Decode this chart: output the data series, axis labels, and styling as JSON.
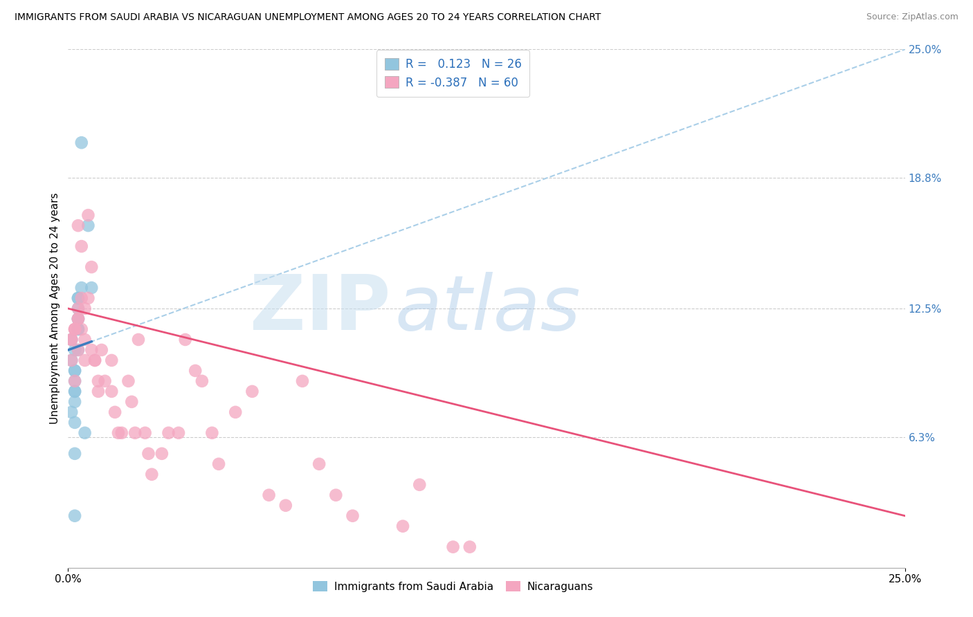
{
  "title": "IMMIGRANTS FROM SAUDI ARABIA VS NICARAGUAN UNEMPLOYMENT AMONG AGES 20 TO 24 YEARS CORRELATION CHART",
  "source": "Source: ZipAtlas.com",
  "ylabel": "Unemployment Among Ages 20 to 24 years",
  "xlim": [
    0.0,
    0.25
  ],
  "ylim": [
    0.0,
    0.25
  ],
  "ytick_right_labels": [
    "6.3%",
    "12.5%",
    "18.8%",
    "25.0%"
  ],
  "ytick_right_values": [
    0.063,
    0.125,
    0.188,
    0.25
  ],
  "watermark_zip": "ZIP",
  "watermark_atlas": "atlas",
  "blue_color": "#92c5de",
  "pink_color": "#f4a6c0",
  "blue_line_color": "#3d7dbf",
  "pink_line_color": "#e8527a",
  "blue_dash_color": "#aacfe8",
  "saudi_x": [
    0.002,
    0.004,
    0.001,
    0.002,
    0.003,
    0.001,
    0.002,
    0.003,
    0.002,
    0.002,
    0.003,
    0.003,
    0.003,
    0.003,
    0.002,
    0.001,
    0.002,
    0.004,
    0.003,
    0.003,
    0.007,
    0.005,
    0.002,
    0.006,
    0.002,
    0.002
  ],
  "saudi_y": [
    0.105,
    0.205,
    0.11,
    0.085,
    0.115,
    0.075,
    0.095,
    0.12,
    0.09,
    0.095,
    0.125,
    0.13,
    0.115,
    0.105,
    0.085,
    0.1,
    0.08,
    0.135,
    0.12,
    0.13,
    0.135,
    0.065,
    0.055,
    0.165,
    0.025,
    0.07
  ],
  "nica_x": [
    0.001,
    0.001,
    0.002,
    0.002,
    0.001,
    0.002,
    0.003,
    0.002,
    0.003,
    0.003,
    0.004,
    0.003,
    0.004,
    0.003,
    0.004,
    0.005,
    0.005,
    0.006,
    0.005,
    0.006,
    0.007,
    0.008,
    0.007,
    0.008,
    0.009,
    0.009,
    0.01,
    0.011,
    0.013,
    0.013,
    0.014,
    0.015,
    0.016,
    0.018,
    0.019,
    0.02,
    0.021,
    0.023,
    0.024,
    0.025,
    0.028,
    0.03,
    0.033,
    0.035,
    0.038,
    0.04,
    0.043,
    0.045,
    0.05,
    0.055,
    0.06,
    0.065,
    0.07,
    0.075,
    0.08,
    0.085,
    0.1,
    0.105,
    0.115,
    0.12
  ],
  "nica_y": [
    0.11,
    0.11,
    0.115,
    0.09,
    0.1,
    0.115,
    0.12,
    0.115,
    0.105,
    0.12,
    0.13,
    0.125,
    0.115,
    0.165,
    0.155,
    0.125,
    0.1,
    0.13,
    0.11,
    0.17,
    0.145,
    0.1,
    0.105,
    0.1,
    0.09,
    0.085,
    0.105,
    0.09,
    0.085,
    0.1,
    0.075,
    0.065,
    0.065,
    0.09,
    0.08,
    0.065,
    0.11,
    0.065,
    0.055,
    0.045,
    0.055,
    0.065,
    0.065,
    0.11,
    0.095,
    0.09,
    0.065,
    0.05,
    0.075,
    0.085,
    0.035,
    0.03,
    0.09,
    0.05,
    0.035,
    0.025,
    0.02,
    0.04,
    0.01,
    0.01
  ],
  "legend_line1": "R =   0.123   N = 26",
  "legend_line2": "R = -0.387   N = 60",
  "legend_color": "#2b6fba"
}
